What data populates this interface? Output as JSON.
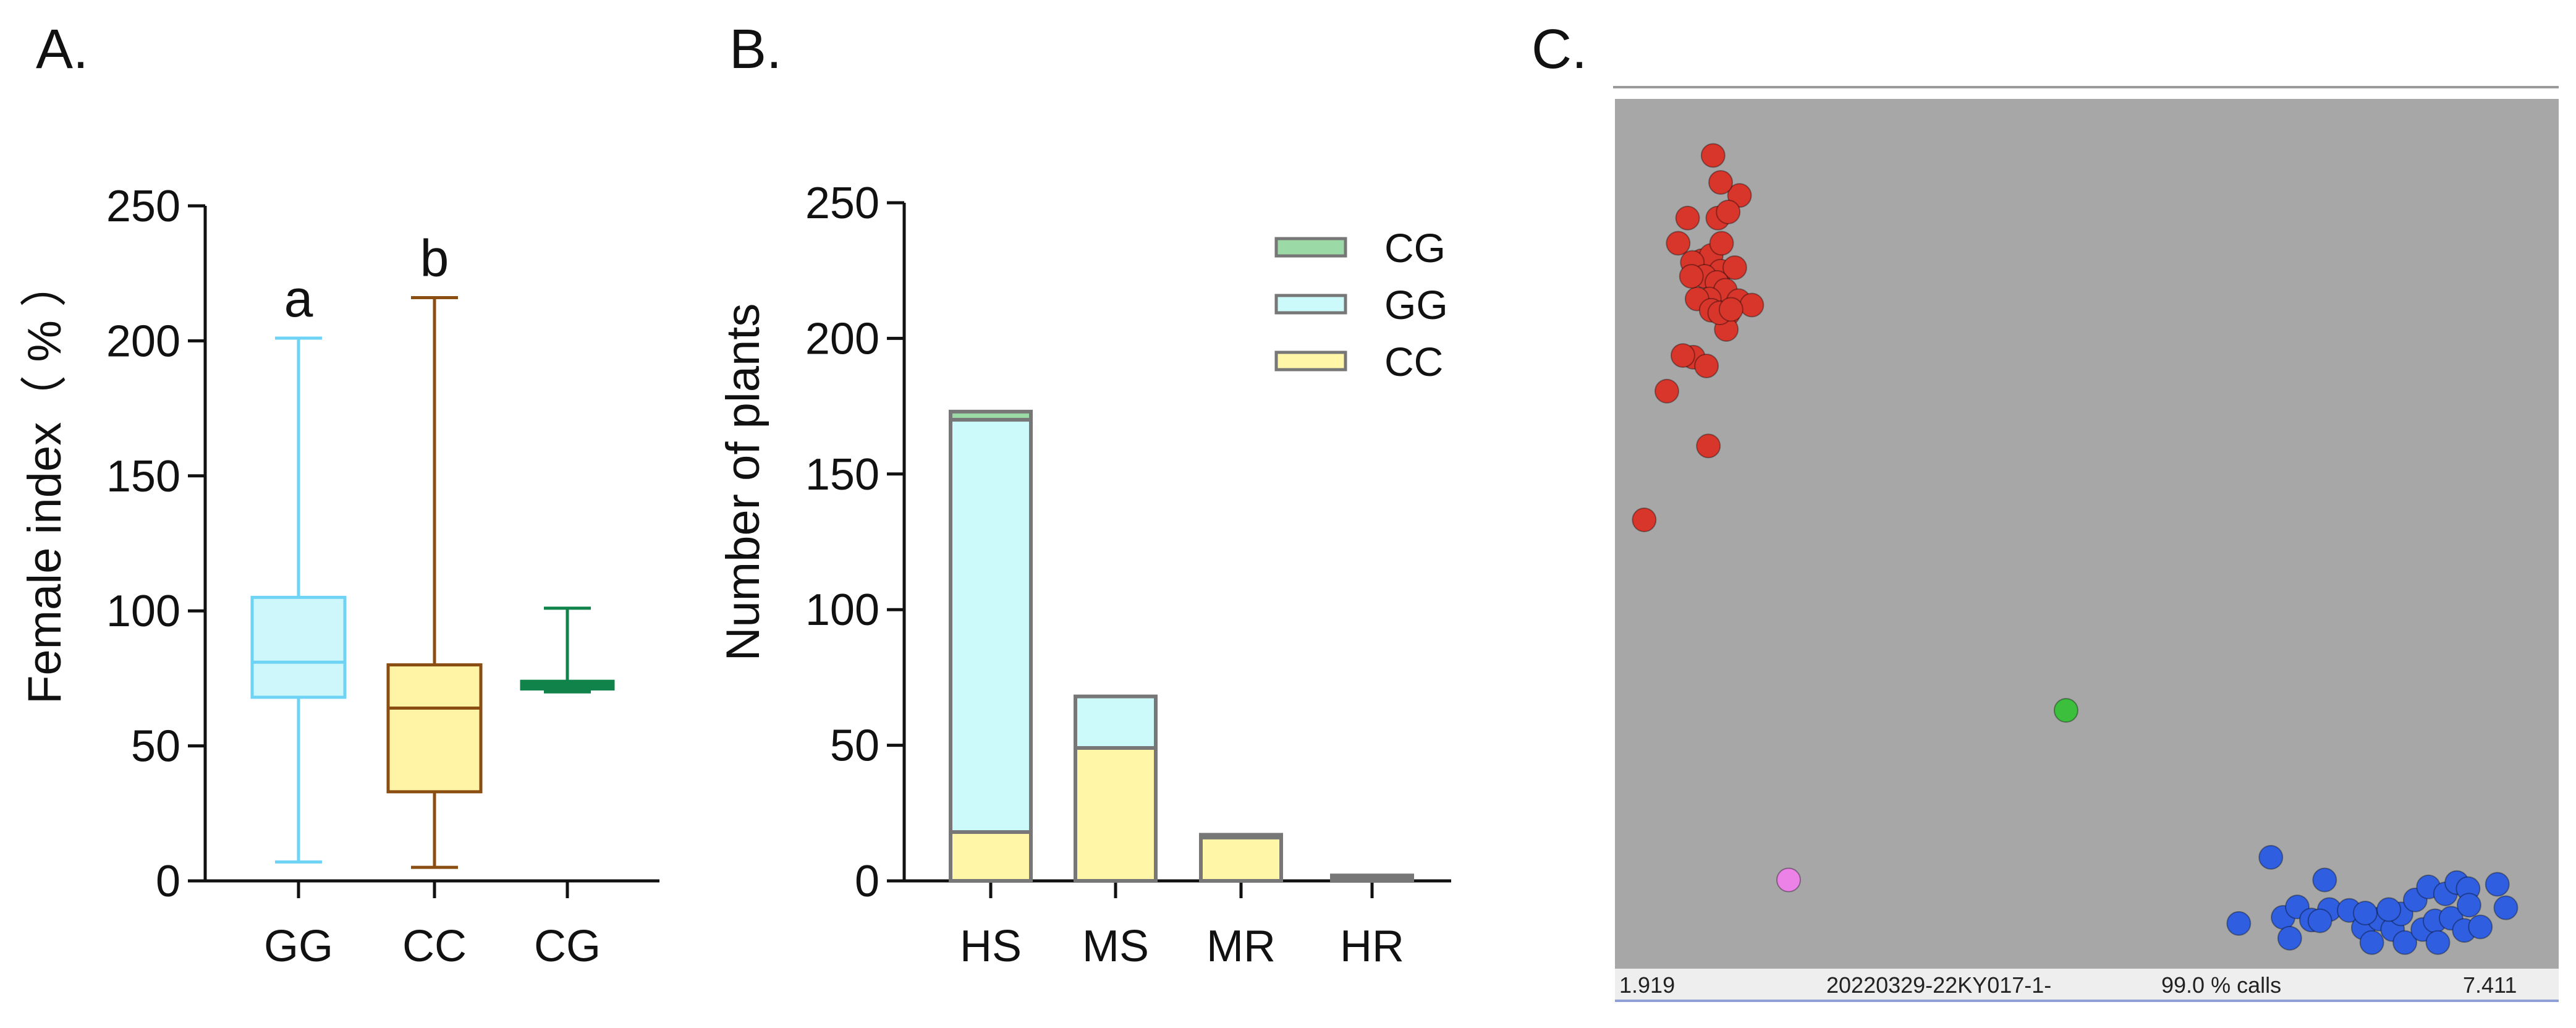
{
  "chart_data": [
    {
      "panel_label": "A.",
      "type": "box",
      "title": "",
      "ylabel": "Female index（ % ）",
      "xlabel": "",
      "ylim": [
        0,
        250
      ],
      "yticks": [
        0,
        50,
        100,
        150,
        200,
        250
      ],
      "categories": [
        "GG",
        "CC",
        "CG"
      ],
      "boxes": [
        {
          "name": "GG",
          "min": 7,
          "q1": 68,
          "median": 81,
          "q3": 105,
          "max": 201,
          "letter": "a",
          "stroke": "#6fd3f5",
          "fill": "#cdf7fb"
        },
        {
          "name": "CC",
          "min": 5,
          "q1": 33,
          "median": 64,
          "q3": 80,
          "max": 216,
          "letter": "b",
          "stroke": "#8a4d12",
          "fill": "#fff3a6"
        },
        {
          "name": "CG",
          "min": 70,
          "q1": 72,
          "median": 73,
          "q3": 73,
          "max": 101,
          "letter": "",
          "stroke": "#10834a",
          "fill": "#10834a"
        }
      ]
    },
    {
      "panel_label": "B.",
      "type": "bar",
      "stacked": true,
      "title": "",
      "ylabel": "Number of plants",
      "xlabel": "",
      "ylim": [
        0,
        250
      ],
      "yticks": [
        0,
        50,
        100,
        150,
        200,
        250
      ],
      "categories": [
        "HS",
        "MS",
        "MR",
        "HR"
      ],
      "series": [
        {
          "name": "CC",
          "values": [
            18,
            49,
            16,
            1
          ],
          "color": "#fff6a8"
        },
        {
          "name": "GG",
          "values": [
            152,
            19,
            0,
            0
          ],
          "color": "#ccfafb"
        },
        {
          "name": "CG",
          "values": [
            3,
            0,
            1,
            1
          ],
          "color": "#9bd9a6"
        }
      ],
      "legend_order": [
        "CG",
        "GG",
        "CC"
      ],
      "legend_position": "top-right"
    },
    {
      "panel_label": "C.",
      "type": "scatter",
      "title": "",
      "x_range": [
        0,
        1
      ],
      "y_range": [
        0,
        1
      ],
      "status_bar": {
        "left_value": "1.919",
        "run_name": "20220329-22KY017-1-",
        "call_rate": "99.0 % calls",
        "right_value": "7.411"
      },
      "series": [
        {
          "name": "red-cluster",
          "color": "#d8352b",
          "points": [
            [
              0.104,
              0.935
            ],
            [
              0.132,
              0.889
            ],
            [
              0.112,
              0.904
            ],
            [
              0.077,
              0.863
            ],
            [
              0.067,
              0.834
            ],
            [
              0.109,
              0.863
            ],
            [
              0.12,
              0.87
            ],
            [
              0.092,
              0.814
            ],
            [
              0.102,
              0.82
            ],
            [
              0.082,
              0.812
            ],
            [
              0.112,
              0.802
            ],
            [
              0.127,
              0.806
            ],
            [
              0.095,
              0.796
            ],
            [
              0.108,
              0.789
            ],
            [
              0.117,
              0.78
            ],
            [
              0.131,
              0.768
            ],
            [
              0.1,
              0.77
            ],
            [
              0.087,
              0.77
            ],
            [
              0.12,
              0.753
            ],
            [
              0.102,
              0.757
            ],
            [
              0.145,
              0.763
            ],
            [
              0.118,
              0.735
            ],
            [
              0.083,
              0.703
            ],
            [
              0.072,
              0.705
            ],
            [
              0.097,
              0.693
            ],
            [
              0.055,
              0.664
            ],
            [
              0.099,
              0.601
            ],
            [
              0.031,
              0.516
            ],
            [
              0.113,
              0.834
            ],
            [
              0.081,
              0.796
            ],
            [
              0.111,
              0.754
            ],
            [
              0.123,
              0.758
            ]
          ]
        },
        {
          "name": "green-point",
          "color": "#3cbf3c",
          "points": [
            [
              0.478,
              0.297
            ]
          ]
        },
        {
          "name": "pink-point",
          "color": "#ec82e8",
          "points": [
            [
              0.184,
              0.102
            ]
          ]
        },
        {
          "name": "blue-cluster",
          "color": "#2f5fe0",
          "points": [
            [
              0.695,
              0.128
            ],
            [
              0.661,
              0.052
            ],
            [
              0.752,
              0.102
            ],
            [
              0.708,
              0.059
            ],
            [
              0.715,
              0.035
            ],
            [
              0.723,
              0.071
            ],
            [
              0.738,
              0.056
            ],
            [
              0.757,
              0.068
            ],
            [
              0.747,
              0.055
            ],
            [
              0.778,
              0.067
            ],
            [
              0.793,
              0.047
            ],
            [
              0.802,
              0.03
            ],
            [
              0.81,
              0.057
            ],
            [
              0.824,
              0.045
            ],
            [
              0.833,
              0.063
            ],
            [
              0.848,
              0.079
            ],
            [
              0.837,
              0.03
            ],
            [
              0.856,
              0.045
            ],
            [
              0.869,
              0.055
            ],
            [
              0.862,
              0.094
            ],
            [
              0.88,
              0.086
            ],
            [
              0.892,
              0.099
            ],
            [
              0.904,
              0.092
            ],
            [
              0.886,
              0.058
            ],
            [
              0.9,
              0.044
            ],
            [
              0.917,
              0.048
            ],
            [
              0.935,
              0.097
            ],
            [
              0.944,
              0.07
            ],
            [
              0.905,
              0.073
            ],
            [
              0.872,
              0.03
            ],
            [
              0.795,
              0.064
            ],
            [
              0.82,
              0.068
            ]
          ]
        }
      ]
    }
  ]
}
